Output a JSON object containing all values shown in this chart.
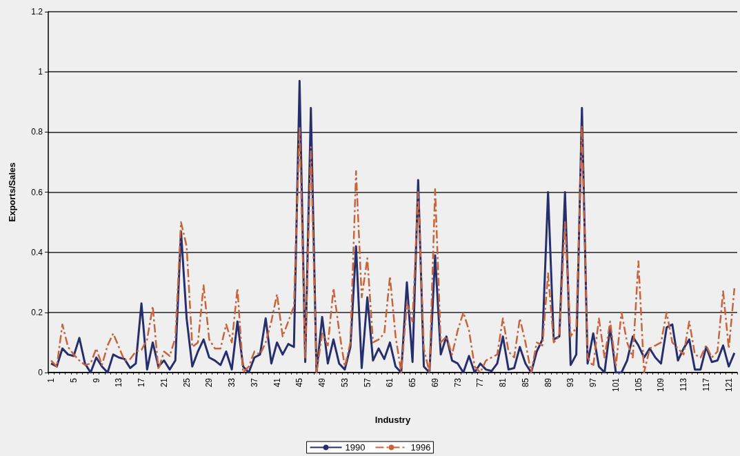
{
  "chart_data": {
    "type": "line",
    "xlabel": "Industry",
    "ylabel": "Exports/Sales",
    "categories": [
      "1",
      null,
      null,
      null,
      "5",
      null,
      null,
      null,
      "9",
      null,
      null,
      null,
      "13",
      null,
      null,
      null,
      "17",
      null,
      null,
      null,
      "21",
      null,
      null,
      null,
      "25",
      null,
      null,
      null,
      "29",
      null,
      null,
      null,
      "33",
      null,
      null,
      null,
      "37",
      null,
      null,
      null,
      "41",
      null,
      null,
      null,
      "45",
      null,
      null,
      null,
      "49",
      null,
      null,
      null,
      "53",
      null,
      null,
      null,
      "57",
      null,
      null,
      null,
      "61",
      null,
      null,
      null,
      "65",
      null,
      null,
      null,
      "69",
      null,
      null,
      null,
      "73",
      null,
      null,
      null,
      "77",
      null,
      null,
      null,
      "81",
      null,
      null,
      null,
      "85",
      null,
      null,
      null,
      "89",
      null,
      null,
      null,
      "93",
      null,
      null,
      null,
      "97",
      null,
      null,
      null,
      "101",
      null,
      null,
      null,
      "105",
      null,
      null,
      null,
      "109",
      null,
      null,
      null,
      "113",
      null,
      null,
      null,
      "117",
      null,
      null,
      null,
      "121",
      null
    ],
    "series": [
      {
        "name": "1990",
        "color": "#262e6b",
        "line_style": "solid",
        "values": [
          0.03,
          0.02,
          0.08,
          0.06,
          0.055,
          0.115,
          0.03,
          0,
          0.05,
          0.02,
          0,
          0.06,
          0.05,
          0.045,
          0.015,
          0.03,
          0.23,
          0.01,
          0.1,
          0.02,
          0.04,
          0.01,
          0.04,
          0.47,
          0.18,
          0.02,
          0.07,
          0.11,
          0.05,
          0.04,
          0.025,
          0.07,
          0.01,
          0.17,
          0.02,
          0,
          0.05,
          0.06,
          0.18,
          0.03,
          0.1,
          0.06,
          0.095,
          0.085,
          0.97,
          0.035,
          0.88,
          0,
          0.185,
          0.03,
          0.11,
          0.03,
          0.01,
          0.085,
          0.42,
          0.015,
          0.25,
          0.04,
          0.08,
          0.045,
          0.1,
          0.02,
          0,
          0.3,
          0.035,
          0.64,
          0.02,
          0,
          0.39,
          0.06,
          0.12,
          0.04,
          0.03,
          0,
          0.055,
          0,
          0.03,
          0.01,
          0.005,
          0.03,
          0.12,
          0.01,
          0.015,
          0.085,
          0.03,
          0,
          0.07,
          0.11,
          0.6,
          0.11,
          0.12,
          0.6,
          0.025,
          0.06,
          0.88,
          0.03,
          0.13,
          0.02,
          0,
          0.15,
          0,
          0,
          0.04,
          0.12,
          0.09,
          0.05,
          0.08,
          0.05,
          0.03,
          0.15,
          0.16,
          0.04,
          0.08,
          0.11,
          0.01,
          0.01,
          0.085,
          0.035,
          0.04,
          0.09,
          0.02,
          0.065
        ]
      },
      {
        "name": "1996",
        "color": "#c8643c",
        "line_style": "dashed",
        "values": [
          0.04,
          0.02,
          0.16,
          0.085,
          0.06,
          0.04,
          0.025,
          0.03,
          0.08,
          0.025,
          0.09,
          0.13,
          0.085,
          0.04,
          0.045,
          0.07,
          0.075,
          0.11,
          0.22,
          0.01,
          0.07,
          0.055,
          0.115,
          0.5,
          0.42,
          0.085,
          0.1,
          0.29,
          0.11,
          0.08,
          0.08,
          0.16,
          0.1,
          0.28,
          0,
          0.02,
          0.07,
          0.06,
          0.1,
          0.17,
          0.26,
          0.12,
          0.17,
          0.22,
          0.82,
          0.05,
          0.75,
          0,
          0.13,
          0.09,
          0.28,
          0.14,
          0.02,
          0.1,
          0.67,
          0.25,
          0.38,
          0.1,
          0.11,
          0.13,
          0.32,
          0.12,
          0,
          0.23,
          0.17,
          0.6,
          0.08,
          0,
          0.61,
          0.1,
          0.12,
          0.06,
          0.14,
          0.2,
          0.14,
          0.02,
          0,
          0.04,
          0.05,
          0.06,
          0.18,
          0.07,
          0.05,
          0.18,
          0.1,
          0,
          0.1,
          0.09,
          0.33,
          0.1,
          0.12,
          0.5,
          0.12,
          0.15,
          0.82,
          0.05,
          0.02,
          0.18,
          0.05,
          0.17,
          0.02,
          0.2,
          0.1,
          0.05,
          0.37,
          0,
          0.08,
          0.09,
          0.1,
          0.2,
          0.1,
          0.08,
          0.06,
          0.17,
          0.06,
          0.05,
          0.09,
          0.05,
          0.07,
          0.27,
          0.08,
          0.28
        ]
      }
    ],
    "ylim": [
      0,
      1.2
    ],
    "yticks": [
      0,
      0.2,
      0.4,
      0.6,
      0.8,
      1,
      1.2
    ],
    "grid": "y",
    "legend": "bottom",
    "marker": "none"
  }
}
